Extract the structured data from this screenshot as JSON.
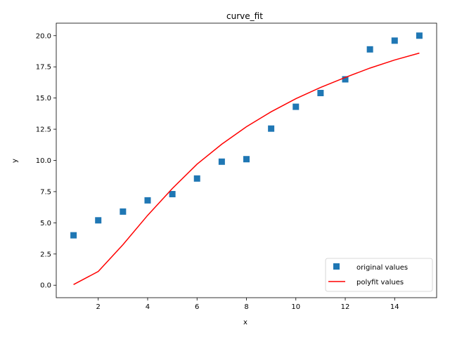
{
  "chart_data": {
    "type": "scatter",
    "title": "curve_fit",
    "xlabel": "x",
    "ylabel": "y",
    "xlim": [
      0.3,
      15.7
    ],
    "ylim": [
      -1.0,
      21.0
    ],
    "xticks": [
      2,
      4,
      6,
      8,
      10,
      12,
      14
    ],
    "yticks": [
      0.0,
      2.5,
      5.0,
      7.5,
      10.0,
      12.5,
      15.0,
      17.5,
      20.0
    ],
    "ytick_labels": [
      "0.0",
      "2.5",
      "5.0",
      "7.5",
      "10.0",
      "12.5",
      "15.0",
      "17.5",
      "20.0"
    ],
    "grid": false,
    "legend_position": "lower right",
    "series": [
      {
        "name": "original values",
        "kind": "markers",
        "marker": "square",
        "color": "#1f77b4",
        "x": [
          1,
          2,
          3,
          4,
          5,
          6,
          7,
          8,
          9,
          10,
          11,
          12,
          13,
          14,
          15
        ],
        "y": [
          4.0,
          5.2,
          5.9,
          6.8,
          7.3,
          8.55,
          9.9,
          10.1,
          12.55,
          14.3,
          15.4,
          16.5,
          18.9,
          19.6,
          20.0
        ]
      },
      {
        "name": "polyfit values",
        "kind": "line",
        "color": "#ff0000",
        "x": [
          1,
          2,
          3,
          4,
          5,
          6,
          7,
          8,
          9,
          10,
          11,
          12,
          13,
          14,
          15
        ],
        "y": [
          0.05,
          1.1,
          3.25,
          5.6,
          7.75,
          9.7,
          11.3,
          12.7,
          13.9,
          14.95,
          15.85,
          16.65,
          17.4,
          18.05,
          18.6
        ]
      }
    ]
  }
}
